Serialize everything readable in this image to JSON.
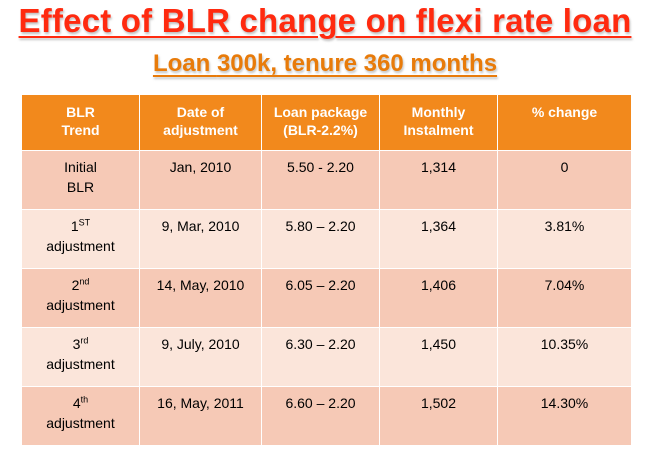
{
  "title": "Effect of BLR change on flexi rate loan",
  "subtitle_prefix": "Loan ",
  "subtitle_rest": "300k, tenure 360 months",
  "colors": {
    "title": "#ff2a0f",
    "subtitle": "#111111",
    "header_bg": "#f2891c",
    "row_dark": "#f6c9b6",
    "row_light": "#fbe5da"
  },
  "table": {
    "headers": [
      [
        "BLR",
        "Trend"
      ],
      [
        "Date of",
        "adjustment"
      ],
      [
        "Loan package",
        "(BLR-2.2%)"
      ],
      [
        "Monthly",
        "Instalment"
      ],
      [
        "% change",
        ""
      ]
    ],
    "rows": [
      {
        "trend_top": "Initial",
        "trend_sup": "",
        "trend_bottom": "BLR",
        "date": "Jan, 2010",
        "package": "5.50 - 2.20",
        "instalment": "1,314",
        "change": "0"
      },
      {
        "trend_top": "1",
        "trend_sup": "ST",
        "trend_bottom": "adjustment",
        "date": "9, Mar, 2010",
        "package": "5.80 – 2.20",
        "instalment": "1,364",
        "change": "3.81%"
      },
      {
        "trend_top": "2",
        "trend_sup": "nd",
        "trend_bottom": "adjustment",
        "date": "14, May, 2010",
        "package": "6.05 – 2.20",
        "instalment": "1,406",
        "change": "7.04%"
      },
      {
        "trend_top": "3",
        "trend_sup": "rd",
        "trend_bottom": "adjustment",
        "date": "9, July, 2010",
        "package": "6.30 – 2.20",
        "instalment": "1,450",
        "change": "10.35%"
      },
      {
        "trend_top": "4",
        "trend_sup": "th",
        "trend_bottom": "adjustment",
        "date": "16, May, 2011",
        "package": "6.60 – 2.20",
        "instalment": "1,502",
        "change": "14.30%"
      }
    ]
  }
}
